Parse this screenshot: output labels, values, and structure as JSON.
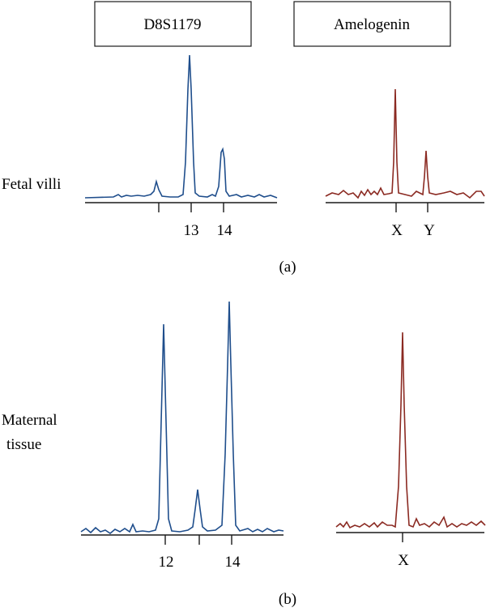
{
  "headers": {
    "locus": "D8S1179",
    "sex_marker": "Amelogenin"
  },
  "panels": [
    {
      "id": "a",
      "caption": "(a)",
      "sample_lines": [
        "Fetal villi"
      ],
      "locus_ticks": [
        {
          "label": ""
        },
        {
          "label": "13"
        },
        {
          "label": "14"
        }
      ],
      "sex_ticks": [
        {
          "label": "X"
        },
        {
          "label": "Y"
        }
      ]
    },
    {
      "id": "b",
      "caption": "(b)",
      "sample_lines": [
        "Maternal",
        "tissue"
      ],
      "locus_ticks": [
        {
          "label": "12"
        },
        {
          "label": ""
        },
        {
          "label": "14"
        }
      ],
      "sex_ticks": [
        {
          "label": "X"
        }
      ]
    }
  ],
  "colors": {
    "locus_trace": "#1f4e8c",
    "sex_trace": "#8b2a22",
    "axis": "#1a1a1a"
  }
}
